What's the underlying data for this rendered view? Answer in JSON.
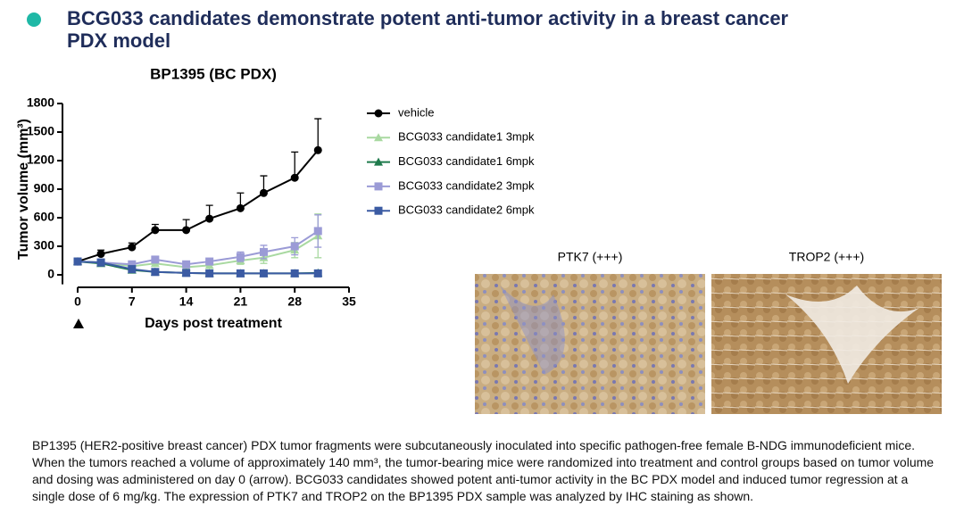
{
  "header": {
    "title": "BCG033 candidates demonstrate potent anti-tumor activity in a breast cancer PDX model"
  },
  "chart_data": {
    "type": "line",
    "title": "BP1395 (BC PDX)",
    "x_label": "Days post treatment",
    "y_label": "Tumor volume (mm³)",
    "x": [
      0,
      3,
      7,
      10,
      14,
      17,
      21,
      24,
      28,
      31
    ],
    "series": [
      {
        "name": "vehicle",
        "color": "#000000",
        "marker": "circle",
        "values": [
          140,
          220,
          290,
          470,
          470,
          590,
          700,
          860,
          1020,
          1310
        ],
        "errors": [
          0,
          40,
          45,
          60,
          110,
          140,
          160,
          180,
          270,
          330
        ]
      },
      {
        "name": "BCG033 candidate1 3mpk",
        "color": "#a9d9a1",
        "marker": "triangle",
        "values": [
          140,
          130,
          90,
          120,
          80,
          100,
          150,
          180,
          260,
          410
        ],
        "errors": [
          20,
          20,
          20,
          30,
          20,
          30,
          40,
          60,
          80,
          230
        ]
      },
      {
        "name": "BCG033 candidate1 6mpk",
        "color": "#1f7a4c",
        "marker": "triangle",
        "values": [
          140,
          120,
          50,
          30,
          20,
          15,
          15,
          15,
          15,
          20
        ],
        "errors": [
          20,
          20,
          10,
          10,
          5,
          5,
          5,
          5,
          5,
          5
        ]
      },
      {
        "name": "BCG033 candidate2 3mpk",
        "color": "#9b9bd6",
        "marker": "square",
        "values": [
          140,
          130,
          110,
          160,
          110,
          140,
          190,
          240,
          300,
          460
        ],
        "errors": [
          20,
          20,
          20,
          30,
          30,
          30,
          50,
          70,
          90,
          170
        ]
      },
      {
        "name": "BCG033 candidate2 6mpk",
        "color": "#3b5ba3",
        "marker": "square",
        "values": [
          140,
          130,
          60,
          30,
          20,
          15,
          15,
          15,
          15,
          15
        ],
        "errors": [
          20,
          20,
          10,
          10,
          5,
          5,
          5,
          5,
          5,
          5
        ]
      }
    ],
    "xlim": [
      0,
      35
    ],
    "xticks": [
      0,
      7,
      14,
      21,
      28,
      35
    ],
    "ylim": [
      -100,
      1800
    ],
    "yticks": [
      0,
      300,
      600,
      900,
      1200,
      1500,
      1800
    ]
  },
  "images": [
    {
      "label": "PTK7 (+++)"
    },
    {
      "label": "TROP2 (+++)"
    }
  ],
  "caption": "BP1395 (HER2-positive breast cancer) PDX tumor fragments were subcutaneously inoculated into specific pathogen-free female B-NDG immunodeficient mice. When the tumors reached a volume of approximately 140 mm³, the tumor-bearing mice were randomized into treatment and control groups based on tumor volume and dosing was administered on day 0 (arrow). BCG033 candidates showed potent anti-tumor activity in the BC PDX model and induced tumor regression at a single dose of 6 mg/kg. The expression of PTK7 and TROP2 on the BP1395 PDX sample was analyzed by IHC staining as shown."
}
